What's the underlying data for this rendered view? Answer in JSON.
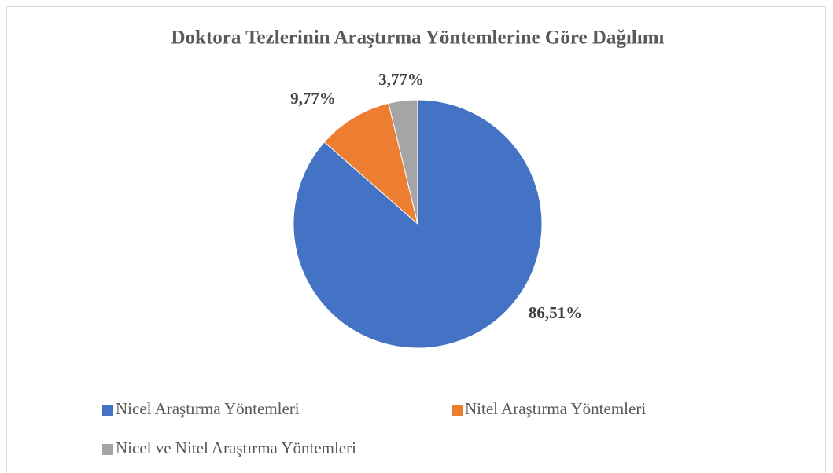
{
  "chart_data": {
    "type": "pie",
    "title": "Doktora Tezlerinin Araştırma Yöntemlerine Göre Dağılımı",
    "categories": [
      "Nicel Araştırma Yöntemleri",
      "Nitel Araştırma Yöntemleri",
      "Nicel ve Nitel Araştırma Yöntemleri"
    ],
    "values": [
      86.51,
      9.77,
      3.77
    ],
    "value_labels": [
      "86,51%",
      "9,77%",
      "3,77%"
    ],
    "colors": [
      "#4472c4",
      "#ed7d31",
      "#a5a5a5"
    ],
    "legend": "bottom"
  }
}
